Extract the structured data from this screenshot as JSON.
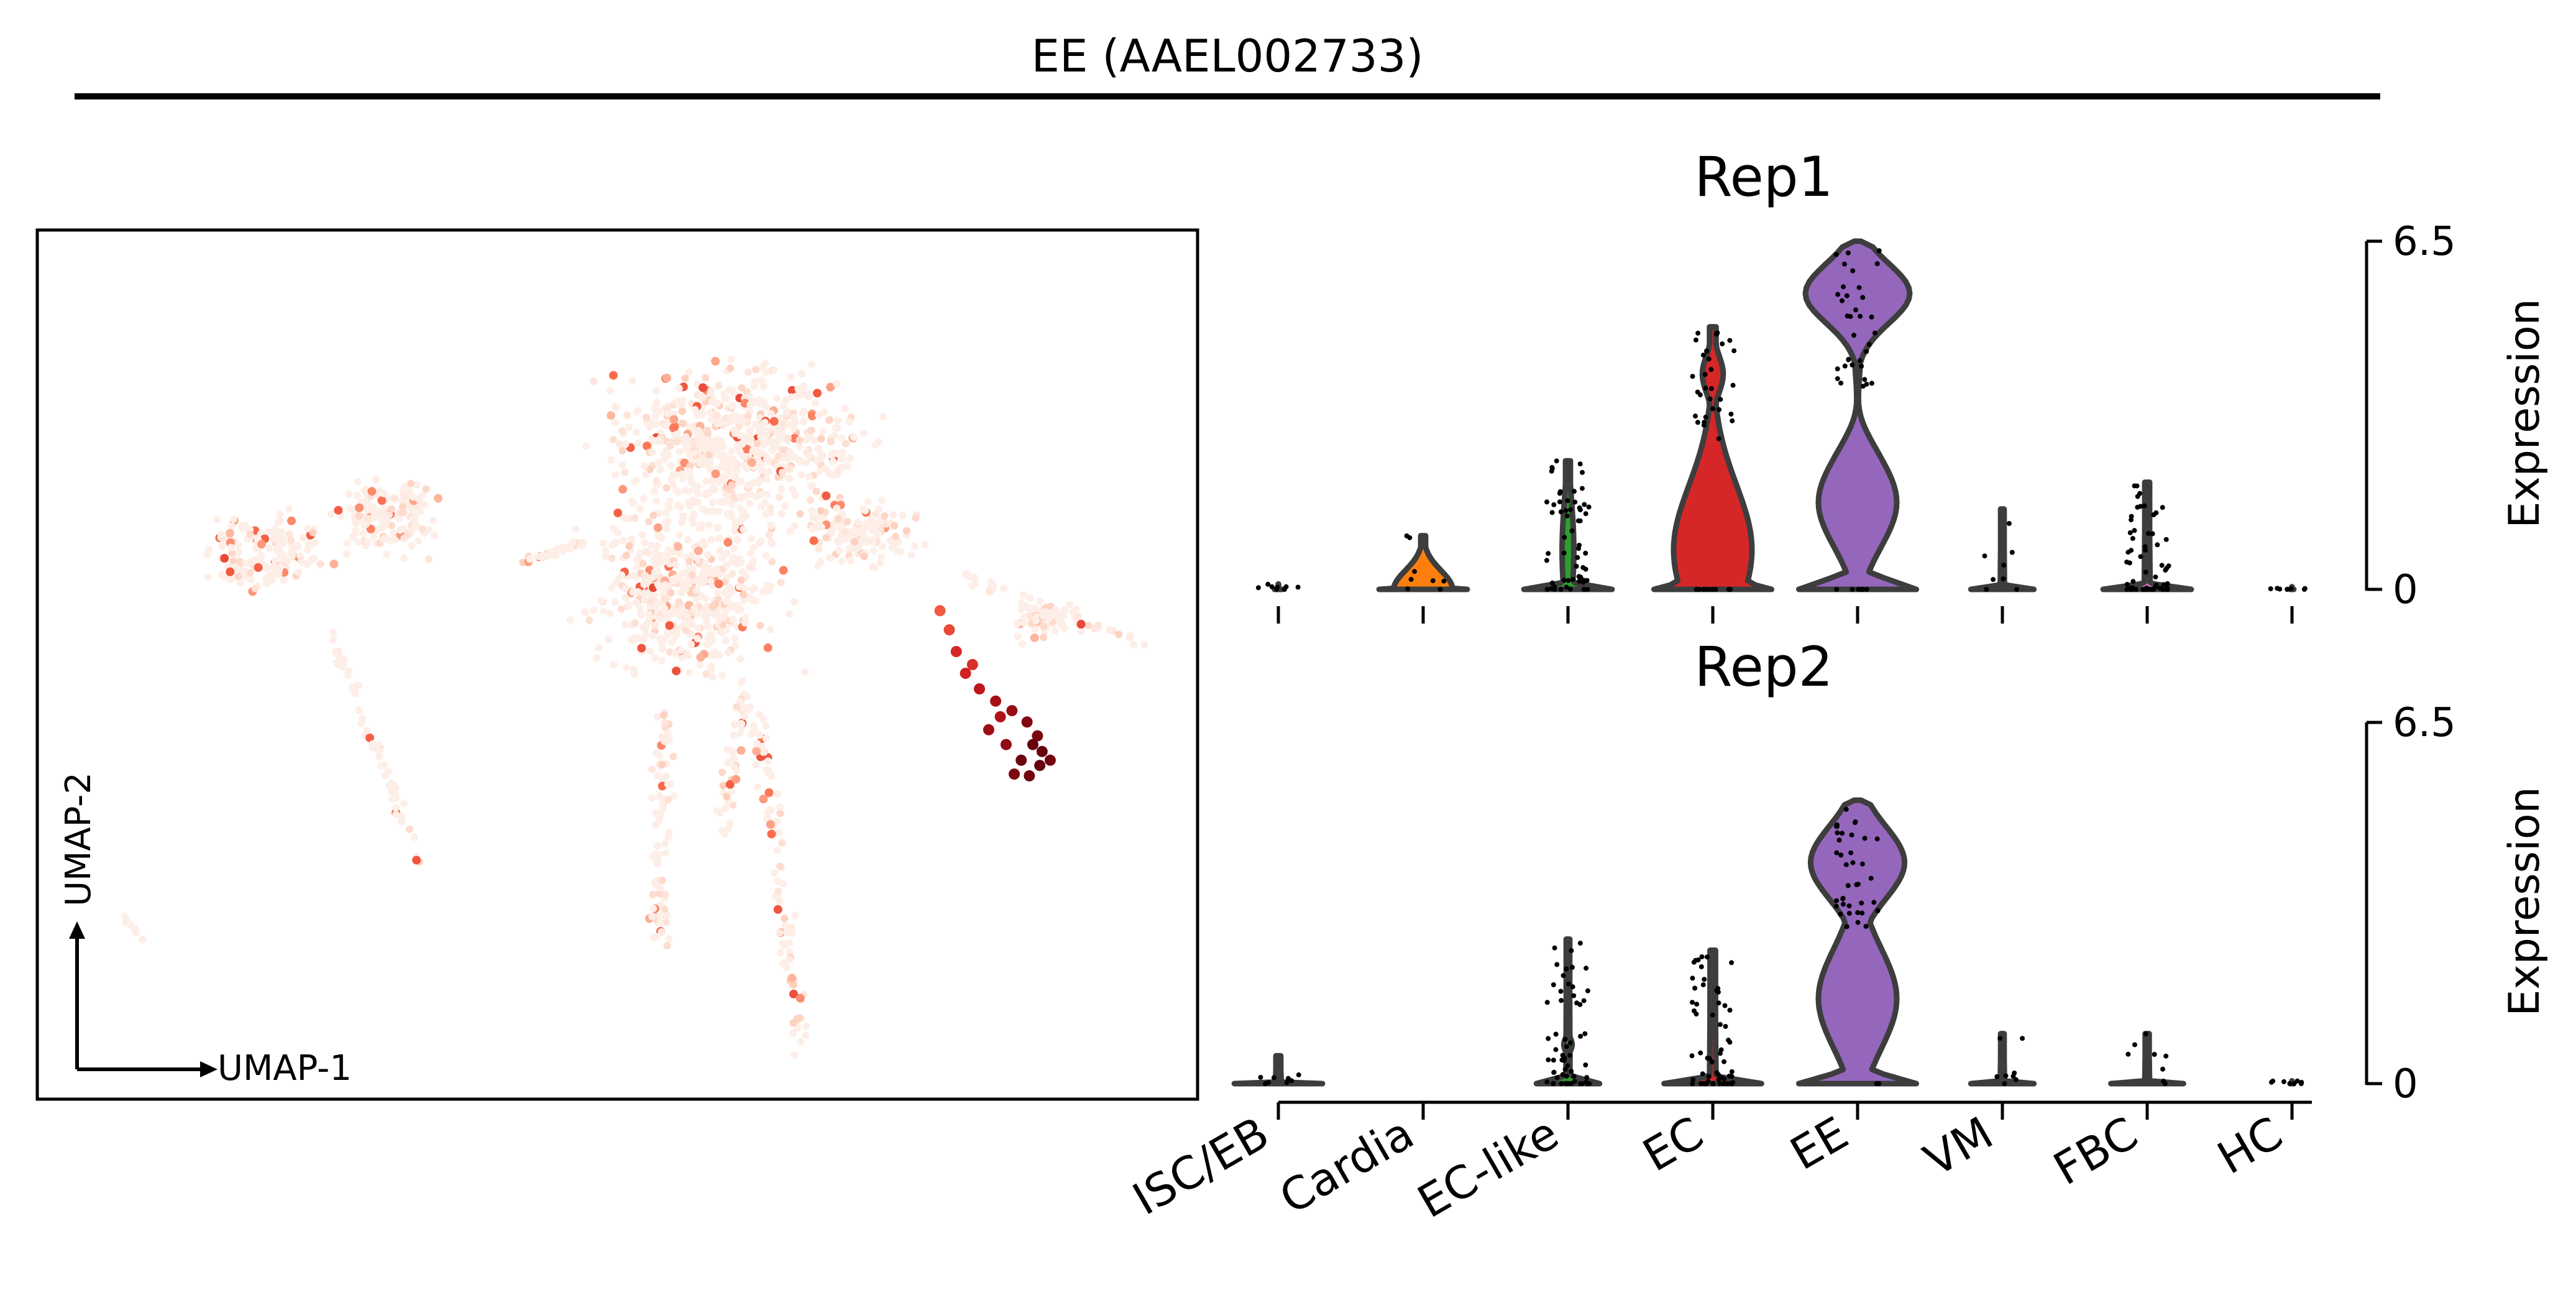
{
  "figure": {
    "title": "EE (AAEL002733)"
  },
  "chart_data": [
    {
      "type": "scatter",
      "subtype": "umap-embedding",
      "title": "",
      "xlabel": "UMAP-1",
      "ylabel": "UMAP-2",
      "axes_ticks": false,
      "grid": false,
      "colormap": [
        "#fff5f0",
        "#fcbba1",
        "#fb6a4a",
        "#cb181d",
        "#67000d"
      ],
      "base_color": "#fdeee7",
      "points_note": "dense low-expression cloud; highlighted cluster is the EE population",
      "highlight_points": [
        {
          "u": 0.778,
          "v": 0.438,
          "expr": 0.55
        },
        {
          "u": 0.786,
          "v": 0.46,
          "expr": 0.6
        },
        {
          "u": 0.792,
          "v": 0.485,
          "expr": 0.7
        },
        {
          "u": 0.8,
          "v": 0.51,
          "expr": 0.72
        },
        {
          "u": 0.812,
          "v": 0.528,
          "expr": 0.78
        },
        {
          "u": 0.826,
          "v": 0.542,
          "expr": 0.84
        },
        {
          "u": 0.84,
          "v": 0.553,
          "expr": 0.88
        },
        {
          "u": 0.853,
          "v": 0.566,
          "expr": 0.93
        },
        {
          "u": 0.862,
          "v": 0.582,
          "expr": 0.96
        },
        {
          "u": 0.866,
          "v": 0.6,
          "expr": 1.0
        },
        {
          "u": 0.864,
          "v": 0.616,
          "expr": 1.0
        },
        {
          "u": 0.855,
          "v": 0.628,
          "expr": 0.98
        },
        {
          "u": 0.842,
          "v": 0.626,
          "expr": 0.95
        },
        {
          "u": 0.848,
          "v": 0.61,
          "expr": 0.99
        },
        {
          "u": 0.835,
          "v": 0.592,
          "expr": 0.9
        },
        {
          "u": 0.82,
          "v": 0.575,
          "expr": 0.86
        },
        {
          "u": 0.858,
          "v": 0.592,
          "expr": 1.0
        },
        {
          "u": 0.83,
          "v": 0.56,
          "expr": 0.82
        },
        {
          "u": 0.806,
          "v": 0.5,
          "expr": 0.68
        },
        {
          "u": 0.873,
          "v": 0.61,
          "expr": 0.97
        }
      ]
    },
    {
      "type": "violin",
      "title": "Rep1",
      "ylabel": "Expression",
      "ylim": [
        0,
        6.5
      ],
      "yticks": [
        "0",
        "6.5"
      ],
      "categories": [
        "ISC/EB",
        "Cardia",
        "EC-like",
        "EC",
        "EE",
        "VM",
        "FBC",
        "HC"
      ],
      "colors": [
        "#1f77b4",
        "#ff7f0e",
        "#2ca02c",
        "#d62728",
        "#9467bd",
        "#8c564b",
        "#e377c2",
        "#7f7f7f"
      ],
      "max_values": [
        0.1,
        1.0,
        2.4,
        4.9,
        6.5,
        1.5,
        2.0,
        0.05
      ]
    },
    {
      "type": "violin",
      "title": "Rep2",
      "ylabel": "Expression",
      "ylim": [
        0,
        6.5
      ],
      "yticks": [
        "0",
        "6.5"
      ],
      "categories": [
        "ISC/EB",
        "Cardia",
        "EC-like",
        "EC",
        "EE",
        "VM",
        "FBC",
        "HC"
      ],
      "colors": [
        "#1f77b4",
        "#ff7f0e",
        "#2ca02c",
        "#d62728",
        "#9467bd",
        "#8c564b",
        "#e377c2",
        "#7f7f7f"
      ],
      "max_values": [
        0.5,
        null,
        2.6,
        2.4,
        5.1,
        0.9,
        0.9,
        0.05
      ]
    }
  ]
}
